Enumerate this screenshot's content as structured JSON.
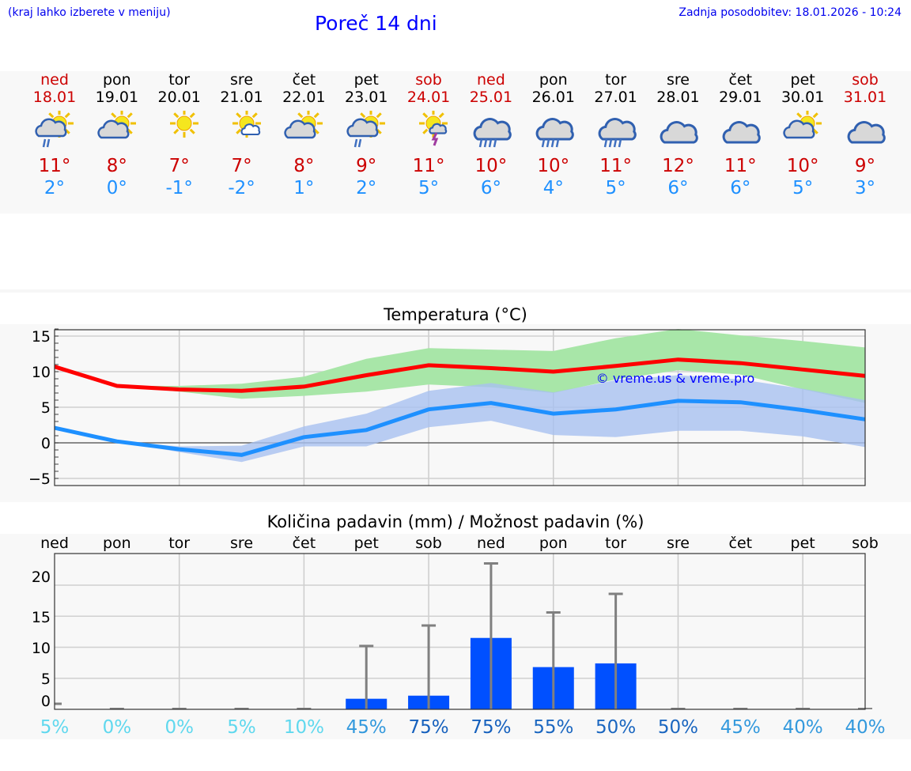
{
  "header": {
    "hint": "(kraj lahko izberete v meniju)",
    "title": "Poreč 14 dni",
    "updated": "Zadnja posodobitev: 18.01.2026 - 10:24"
  },
  "days": [
    {
      "name": "ned",
      "date": "18.01",
      "weekend": true,
      "icon": "sun-cloud-rain-icon",
      "max": "11°",
      "min": "2°"
    },
    {
      "name": "pon",
      "date": "19.01",
      "weekend": false,
      "icon": "sun-cloud-icon",
      "max": "8°",
      "min": "0°"
    },
    {
      "name": "tor",
      "date": "20.01",
      "weekend": false,
      "icon": "sun-icon",
      "max": "7°",
      "min": "-1°"
    },
    {
      "name": "sre",
      "date": "21.01",
      "weekend": false,
      "icon": "sun-small-cloud-icon",
      "max": "7°",
      "min": "-2°"
    },
    {
      "name": "čet",
      "date": "22.01",
      "weekend": false,
      "icon": "sun-cloud-icon",
      "max": "8°",
      "min": "1°"
    },
    {
      "name": "pet",
      "date": "23.01",
      "weekend": false,
      "icon": "sun-cloud-rain-icon",
      "max": "9°",
      "min": "2°"
    },
    {
      "name": "sob",
      "date": "24.01",
      "weekend": true,
      "icon": "sun-thunder-icon",
      "max": "11°",
      "min": "5°"
    },
    {
      "name": "ned",
      "date": "25.01",
      "weekend": true,
      "icon": "cloud-rain-icon",
      "max": "10°",
      "min": "6°"
    },
    {
      "name": "pon",
      "date": "26.01",
      "weekend": false,
      "icon": "cloud-rain-icon",
      "max": "10°",
      "min": "4°"
    },
    {
      "name": "tor",
      "date": "27.01",
      "weekend": false,
      "icon": "cloud-rain-icon",
      "max": "11°",
      "min": "5°"
    },
    {
      "name": "sre",
      "date": "28.01",
      "weekend": false,
      "icon": "cloud-icon",
      "max": "12°",
      "min": "6°"
    },
    {
      "name": "čet",
      "date": "29.01",
      "weekend": false,
      "icon": "cloud-icon",
      "max": "11°",
      "min": "6°"
    },
    {
      "name": "pet",
      "date": "30.01",
      "weekend": false,
      "icon": "sun-cloud-icon",
      "max": "10°",
      "min": "5°"
    },
    {
      "name": "sob",
      "date": "31.01",
      "weekend": true,
      "icon": "cloud-icon",
      "max": "9°",
      "min": "3°"
    }
  ],
  "colors": {
    "weekend": "#cc0000",
    "max": "#ff0000",
    "min": "#1e90ff",
    "maxBand": "#a8e6a8",
    "minBand": "#a8c0f0",
    "bar": "#0050ff",
    "err": "#808080"
  },
  "chart_data": [
    {
      "type": "line",
      "title": "Temperatura (°C)",
      "watermark": "© vreme.us & vreme.pro",
      "ylim": [
        -6,
        16
      ],
      "yticks": [
        15,
        10,
        5,
        0,
        -5
      ],
      "ytick_labels": [
        "15",
        "10",
        "5",
        "0",
        "−5"
      ],
      "series": [
        {
          "name": "max",
          "values": [
            10.7,
            8,
            7.5,
            7.3,
            7.9,
            9.5,
            10.9,
            10.5,
            10,
            10.8,
            11.7,
            11.2,
            10.3,
            9.4
          ],
          "band_hi": [
            10.7,
            8,
            8,
            8.3,
            9.3,
            11.8,
            13.3,
            13.1,
            12.9,
            14.7,
            16,
            15.1,
            14.3,
            13.4
          ],
          "band_lo": [
            10.7,
            8,
            7.2,
            6.2,
            6.6,
            7.2,
            8.2,
            7.8,
            7,
            8.9,
            10.2,
            9.6,
            7.5,
            5.6
          ]
        },
        {
          "name": "min",
          "values": [
            2.1,
            0.2,
            -0.9,
            -1.7,
            0.8,
            1.8,
            4.7,
            5.6,
            4.1,
            4.7,
            5.9,
            5.7,
            4.6,
            3.3
          ],
          "band_hi": [
            2.1,
            0.2,
            -0.5,
            -0.4,
            2.3,
            4.1,
            7.3,
            8.4,
            7.1,
            8.8,
            9.5,
            8.9,
            7.6,
            6
          ],
          "band_lo": [
            2.1,
            0.2,
            -1.3,
            -2.7,
            -0.5,
            -0.5,
            2.2,
            3.1,
            1.1,
            0.8,
            1.7,
            1.7,
            0.9,
            -0.6
          ]
        }
      ]
    },
    {
      "type": "bar",
      "title": "Količina padavin (mm) / Možnost padavin (%)",
      "categories": [
        "ned",
        "pon",
        "tor",
        "sre",
        "čet",
        "pet",
        "sob",
        "ned",
        "pon",
        "tor",
        "sre",
        "čet",
        "pet",
        "sob"
      ],
      "values": [
        0,
        0,
        0,
        0,
        0,
        1.7,
        2.2,
        11.5,
        6.8,
        7.4,
        0,
        0,
        0,
        0
      ],
      "error_max": [
        0.8,
        0,
        0,
        0,
        0,
        10.2,
        13.5,
        23.5,
        15.6,
        18.6,
        0,
        0,
        0,
        0
      ],
      "probability": [
        "5%",
        "0%",
        "0%",
        "5%",
        "10%",
        "45%",
        "75%",
        "75%",
        "55%",
        "50%",
        "50%",
        "45%",
        "40%",
        "40%"
      ],
      "prob_colors": [
        "#5fd8ee",
        "#5fd8ee",
        "#5fd8ee",
        "#5fd8ee",
        "#5fd8ee",
        "#3399dd",
        "#1560bd",
        "#1560bd",
        "#1a66c0",
        "#1a66c0",
        "#1a66c0",
        "#3399dd",
        "#3399dd",
        "#3399dd"
      ],
      "ylim": [
        0,
        25
      ],
      "yticks": [
        20,
        15,
        10,
        5,
        0
      ],
      "ytick_labels": [
        "20",
        "15",
        "10",
        "5",
        "0"
      ]
    }
  ]
}
